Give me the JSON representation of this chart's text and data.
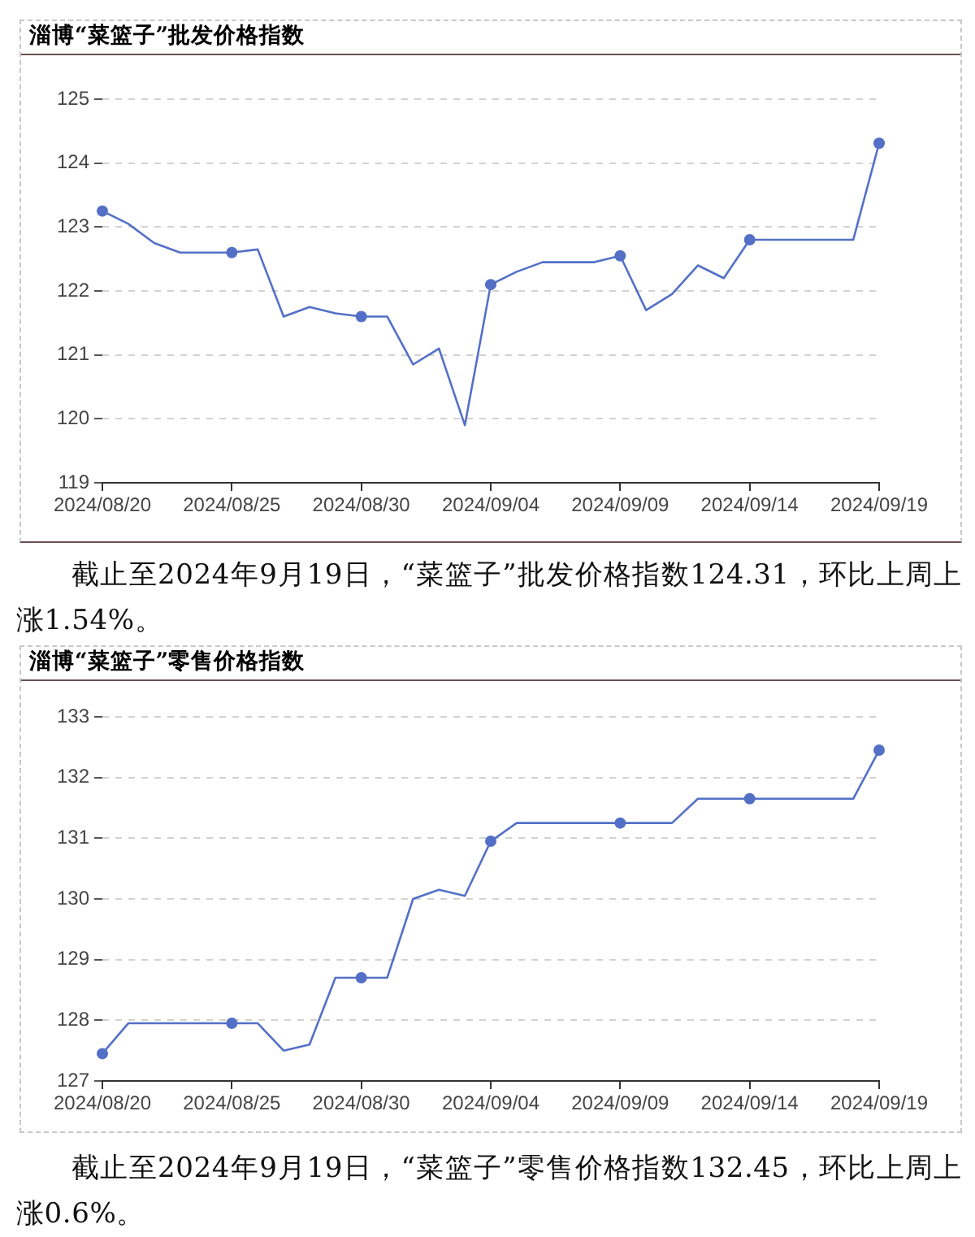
{
  "chart_data": [
    {
      "type": "line",
      "title": "淄博“菜篮子”批发价格指数",
      "annotations": [
        "截止至2024年9月19日，“菜篮子”批发价格指数124.31，环比上周上涨1.54%。"
      ],
      "categories": [
        "2024/08/20",
        null,
        null,
        null,
        null,
        "2024/08/25",
        null,
        null,
        null,
        null,
        "2024/08/30",
        null,
        null,
        null,
        null,
        "2024/09/04",
        null,
        null,
        null,
        null,
        "2024/09/09",
        null,
        null,
        null,
        null,
        "2024/09/14",
        null,
        null,
        null,
        null,
        "2024/09/19"
      ],
      "series": [
        {
          "type": "line",
          "color": "#5470c6",
          "marker": "none",
          "values": [
            123.25,
            123.05,
            122.75,
            122.6,
            122.6,
            122.6,
            122.65,
            121.6,
            121.75,
            121.65,
            121.6,
            121.6,
            120.85,
            121.1,
            119.9,
            122.1,
            122.3,
            122.45,
            122.45,
            122.45,
            122.55,
            121.7,
            121.95,
            122.4,
            122.2,
            122.8,
            122.8,
            122.8,
            122.8,
            122.8,
            124.31
          ]
        },
        {
          "type": "scatter",
          "color": "#5470c6",
          "marker": "circle",
          "x": [
            "2024/08/20",
            "2024/08/25",
            "2024/08/30",
            "2024/09/04",
            "2024/09/09",
            "2024/09/14",
            "2024/09/19"
          ],
          "values": [
            123.25,
            122.6,
            121.6,
            122.1,
            122.55,
            122.8,
            124.31
          ]
        }
      ],
      "ylim": [
        119,
        125
      ],
      "yticks": [
        119,
        120,
        121,
        122,
        123,
        124,
        125
      ],
      "grid": "y"
    },
    {
      "type": "line",
      "title": "淄博“菜篮子”零售价格指数",
      "annotations": [
        "截止至2024年9月19日，“菜篮子”零售价格指数132.45，环比上周上涨0.6%。"
      ],
      "categories": [
        "2024/08/20",
        null,
        null,
        null,
        null,
        "2024/08/25",
        null,
        null,
        null,
        null,
        "2024/08/30",
        null,
        null,
        null,
        null,
        "2024/09/04",
        null,
        null,
        null,
        null,
        "2024/09/09",
        null,
        null,
        null,
        null,
        "2024/09/14",
        null,
        null,
        null,
        null,
        "2024/09/19"
      ],
      "series": [
        {
          "type": "line",
          "color": "#5470c6",
          "marker": "none",
          "values": [
            127.45,
            127.95,
            127.95,
            127.95,
            127.95,
            127.95,
            127.95,
            127.5,
            127.6,
            128.7,
            128.7,
            128.7,
            130.0,
            130.15,
            130.05,
            130.95,
            131.25,
            131.25,
            131.25,
            131.25,
            131.25,
            131.25,
            131.25,
            131.65,
            131.65,
            131.65,
            131.65,
            131.65,
            131.65,
            131.65,
            132.45
          ]
        },
        {
          "type": "scatter",
          "color": "#5470c6",
          "marker": "circle",
          "x": [
            "2024/08/20",
            "2024/08/25",
            "2024/08/30",
            "2024/09/04",
            "2024/09/09",
            "2024/09/14",
            "2024/09/19"
          ],
          "values": [
            127.45,
            127.95,
            128.7,
            130.95,
            131.25,
            131.65,
            132.45
          ]
        }
      ],
      "ylim": [
        127,
        133
      ],
      "yticks": [
        127,
        128,
        129,
        130,
        131,
        132,
        133
      ],
      "grid": "y"
    }
  ]
}
